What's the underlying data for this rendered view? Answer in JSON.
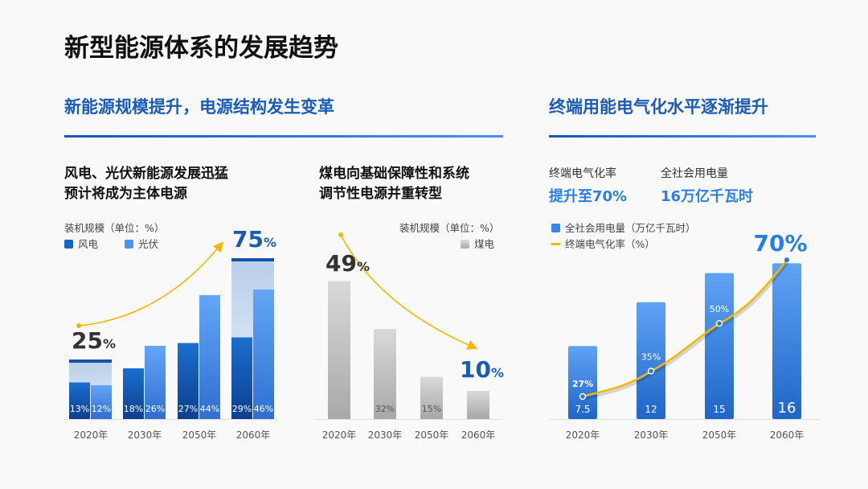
{
  "title": "新型能源体系的发展趋势",
  "left_section": {
    "heading": "新能源规模提升，电源结构发生变革"
  },
  "right_section": {
    "heading": "终端用能电气化水平逐渐提升",
    "stats": [
      {
        "label": "终端电气化率",
        "value": "提升至70%"
      },
      {
        "label": "全社会用电量",
        "value": "16万亿千瓦时"
      }
    ]
  },
  "colors": {
    "accent": "#1a5bb5",
    "wind": "#1563c4",
    "solar": "#4b93ee",
    "coal": "#bdbdbd",
    "line": "#f5b800"
  },
  "chart_data": [
    {
      "type": "bar",
      "subtitle": [
        "风电、光伏新能源发展迅猛",
        "预计将成为主体电源"
      ],
      "unit_label": "装机规模（单位：%）",
      "categories": [
        "2020年",
        "2030年",
        "2050年",
        "2060年"
      ],
      "series": [
        {
          "name": "风电",
          "values": [
            13,
            18,
            27,
            29
          ]
        },
        {
          "name": "光伏",
          "values": [
            12,
            26,
            44,
            46
          ]
        }
      ],
      "value_labels": [
        [
          "13%",
          "18%",
          "27%",
          "29%"
        ],
        [
          "12%",
          "26%",
          "44%",
          "46%"
        ]
      ],
      "totals": [
        {
          "category": "2020年",
          "value": 25,
          "num": "25",
          "pct": "%"
        },
        {
          "category": "2060年",
          "value": 75,
          "num": "75",
          "pct": "%"
        }
      ],
      "trend": "up",
      "legend": "top-left"
    },
    {
      "type": "bar",
      "subtitle": [
        "煤电向基础保障性和系统",
        "调节性电源并重转型"
      ],
      "unit_label": "装机规模（单位：%）",
      "categories": [
        "2020年",
        "2030年",
        "2050年",
        "2060年"
      ],
      "series": [
        {
          "name": "煤电",
          "values": [
            49,
            32,
            15,
            10
          ]
        }
      ],
      "value_labels": [
        "",
        "32%",
        "15%",
        ""
      ],
      "highlights": [
        {
          "category": "2020年",
          "num": "49",
          "pct": "%"
        },
        {
          "category": "2060年",
          "num": "10",
          "pct": "%"
        }
      ],
      "trend": "down",
      "legend": "top-right"
    },
    {
      "type": "bar+line",
      "categories": [
        "2020年",
        "2030年",
        "2050年",
        "2060年"
      ],
      "series": [
        {
          "name": "全社会用电量（万亿千瓦时）",
          "type": "bar",
          "values": [
            7.5,
            12,
            15,
            16
          ],
          "labels": [
            "7.5",
            "12",
            "15",
            "16"
          ]
        },
        {
          "name": "终端电气化率（%）",
          "type": "line",
          "values": [
            27,
            35,
            50,
            70
          ],
          "labels": [
            "27%",
            "35%",
            "50%",
            "70%"
          ]
        }
      ],
      "legend": "top-left"
    }
  ]
}
